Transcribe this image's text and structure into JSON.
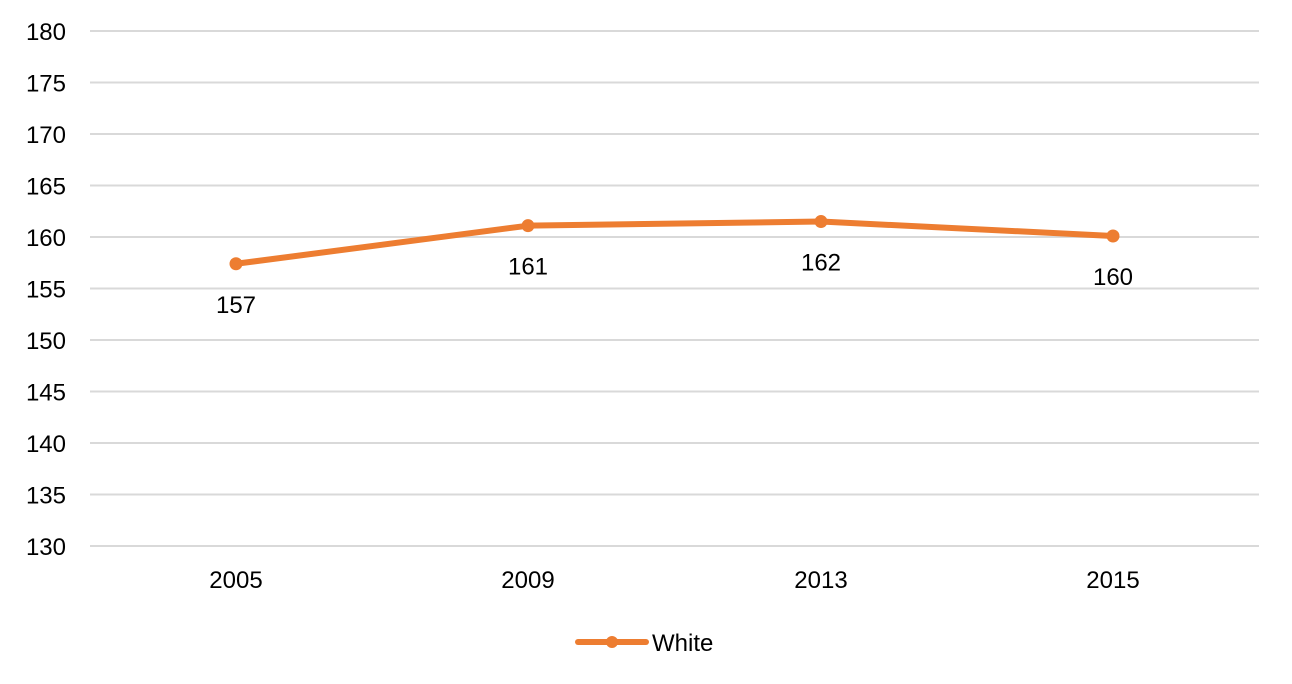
{
  "chart_data": {
    "type": "line",
    "categories": [
      "2005",
      "2009",
      "2013",
      "2015"
    ],
    "series": [
      {
        "name": "White",
        "values": [
          157.4,
          161.1,
          161.5,
          160.1
        ],
        "data_labels": [
          "157",
          "161",
          "162",
          "160"
        ],
        "color": "#ED7D31"
      }
    ],
    "ylim": [
      130,
      180
    ],
    "yticks": [
      130,
      135,
      140,
      145,
      150,
      155,
      160,
      165,
      170,
      175,
      180
    ],
    "grid": true,
    "legend_position": "bottom",
    "gridline_color": "#D9D9D9"
  }
}
